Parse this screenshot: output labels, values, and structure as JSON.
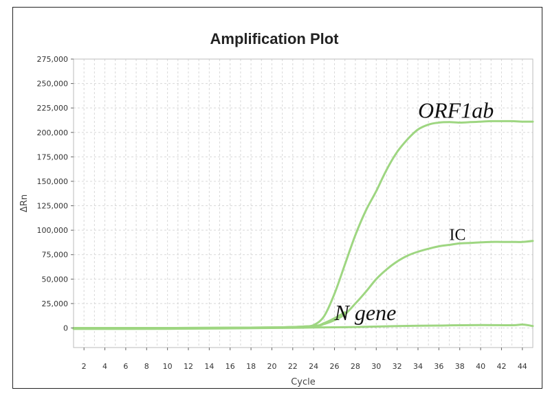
{
  "chart_data": {
    "type": "line",
    "title": "Amplification Plot",
    "xlabel": "Cycle",
    "ylabel": "ΔRn",
    "xlim": [
      1,
      45
    ],
    "ylim": [
      -20000,
      275000
    ],
    "xticks": [
      2,
      4,
      6,
      8,
      10,
      12,
      14,
      16,
      18,
      20,
      22,
      24,
      26,
      28,
      30,
      32,
      34,
      36,
      38,
      40,
      42,
      44
    ],
    "xtick_labels": [
      "2",
      "4",
      "6",
      "8",
      "10",
      "12",
      "14",
      "16",
      "18",
      "20",
      "22",
      "24",
      "26",
      "28",
      "30",
      "32",
      "34",
      "36",
      "38",
      "40",
      "42",
      "44"
    ],
    "yticks": [
      0,
      25000,
      50000,
      75000,
      100000,
      125000,
      150000,
      175000,
      200000,
      225000,
      250000,
      275000
    ],
    "ytick_labels": [
      "0",
      "25,000",
      "50,000",
      "75,000",
      "100,000",
      "125,000",
      "150,000",
      "175,000",
      "200,000",
      "225,000",
      "250,000",
      "275,000"
    ],
    "grid": true,
    "line_color": "#9ed681",
    "series": [
      {
        "x": [
          1,
          5,
          10,
          15,
          20,
          22,
          23,
          24,
          25,
          26,
          27,
          28,
          29,
          30,
          31,
          32,
          33,
          34,
          35,
          36,
          37,
          38,
          39,
          40,
          41,
          42,
          43,
          44,
          45
        ],
        "values": [
          0,
          0,
          0,
          200,
          500,
          1000,
          1500,
          3000,
          12000,
          35000,
          65000,
          95000,
          120000,
          140000,
          162000,
          180000,
          193000,
          203000,
          208000,
          210000,
          210500,
          210000,
          210500,
          211000,
          211500,
          211500,
          211500,
          211000,
          211000
        ]
      },
      {
        "x": [
          1,
          10,
          20,
          24,
          25,
          26,
          27,
          28,
          29,
          30,
          31,
          32,
          33,
          34,
          35,
          36,
          37,
          38,
          39,
          40,
          41,
          42,
          43,
          44,
          45
        ],
        "values": [
          0,
          0,
          500,
          2000,
          4000,
          8000,
          14000,
          25000,
          37000,
          50000,
          60000,
          68000,
          74000,
          78000,
          81000,
          83500,
          85000,
          86500,
          87000,
          87500,
          88000,
          88000,
          88000,
          88000,
          89000
        ]
      },
      {
        "x": [
          1,
          10,
          20,
          24,
          25,
          26,
          27
        ],
        "values": [
          0,
          0,
          500,
          2000,
          5000,
          10000,
          16000
        ]
      },
      {
        "x": [
          1,
          10,
          15,
          20,
          24,
          28,
          32,
          36,
          40,
          43,
          44,
          45
        ],
        "values": [
          -1000,
          -800,
          -500,
          0,
          500,
          1000,
          2000,
          2500,
          3000,
          2800,
          3500,
          2000
        ]
      }
    ],
    "annotations": [
      {
        "text": "ORF1ab",
        "x": 34,
        "y": 215000
      },
      {
        "text": "IC",
        "x": 37,
        "y": 90000
      },
      {
        "text": "N gene",
        "x": 26,
        "y": 8000
      }
    ]
  }
}
